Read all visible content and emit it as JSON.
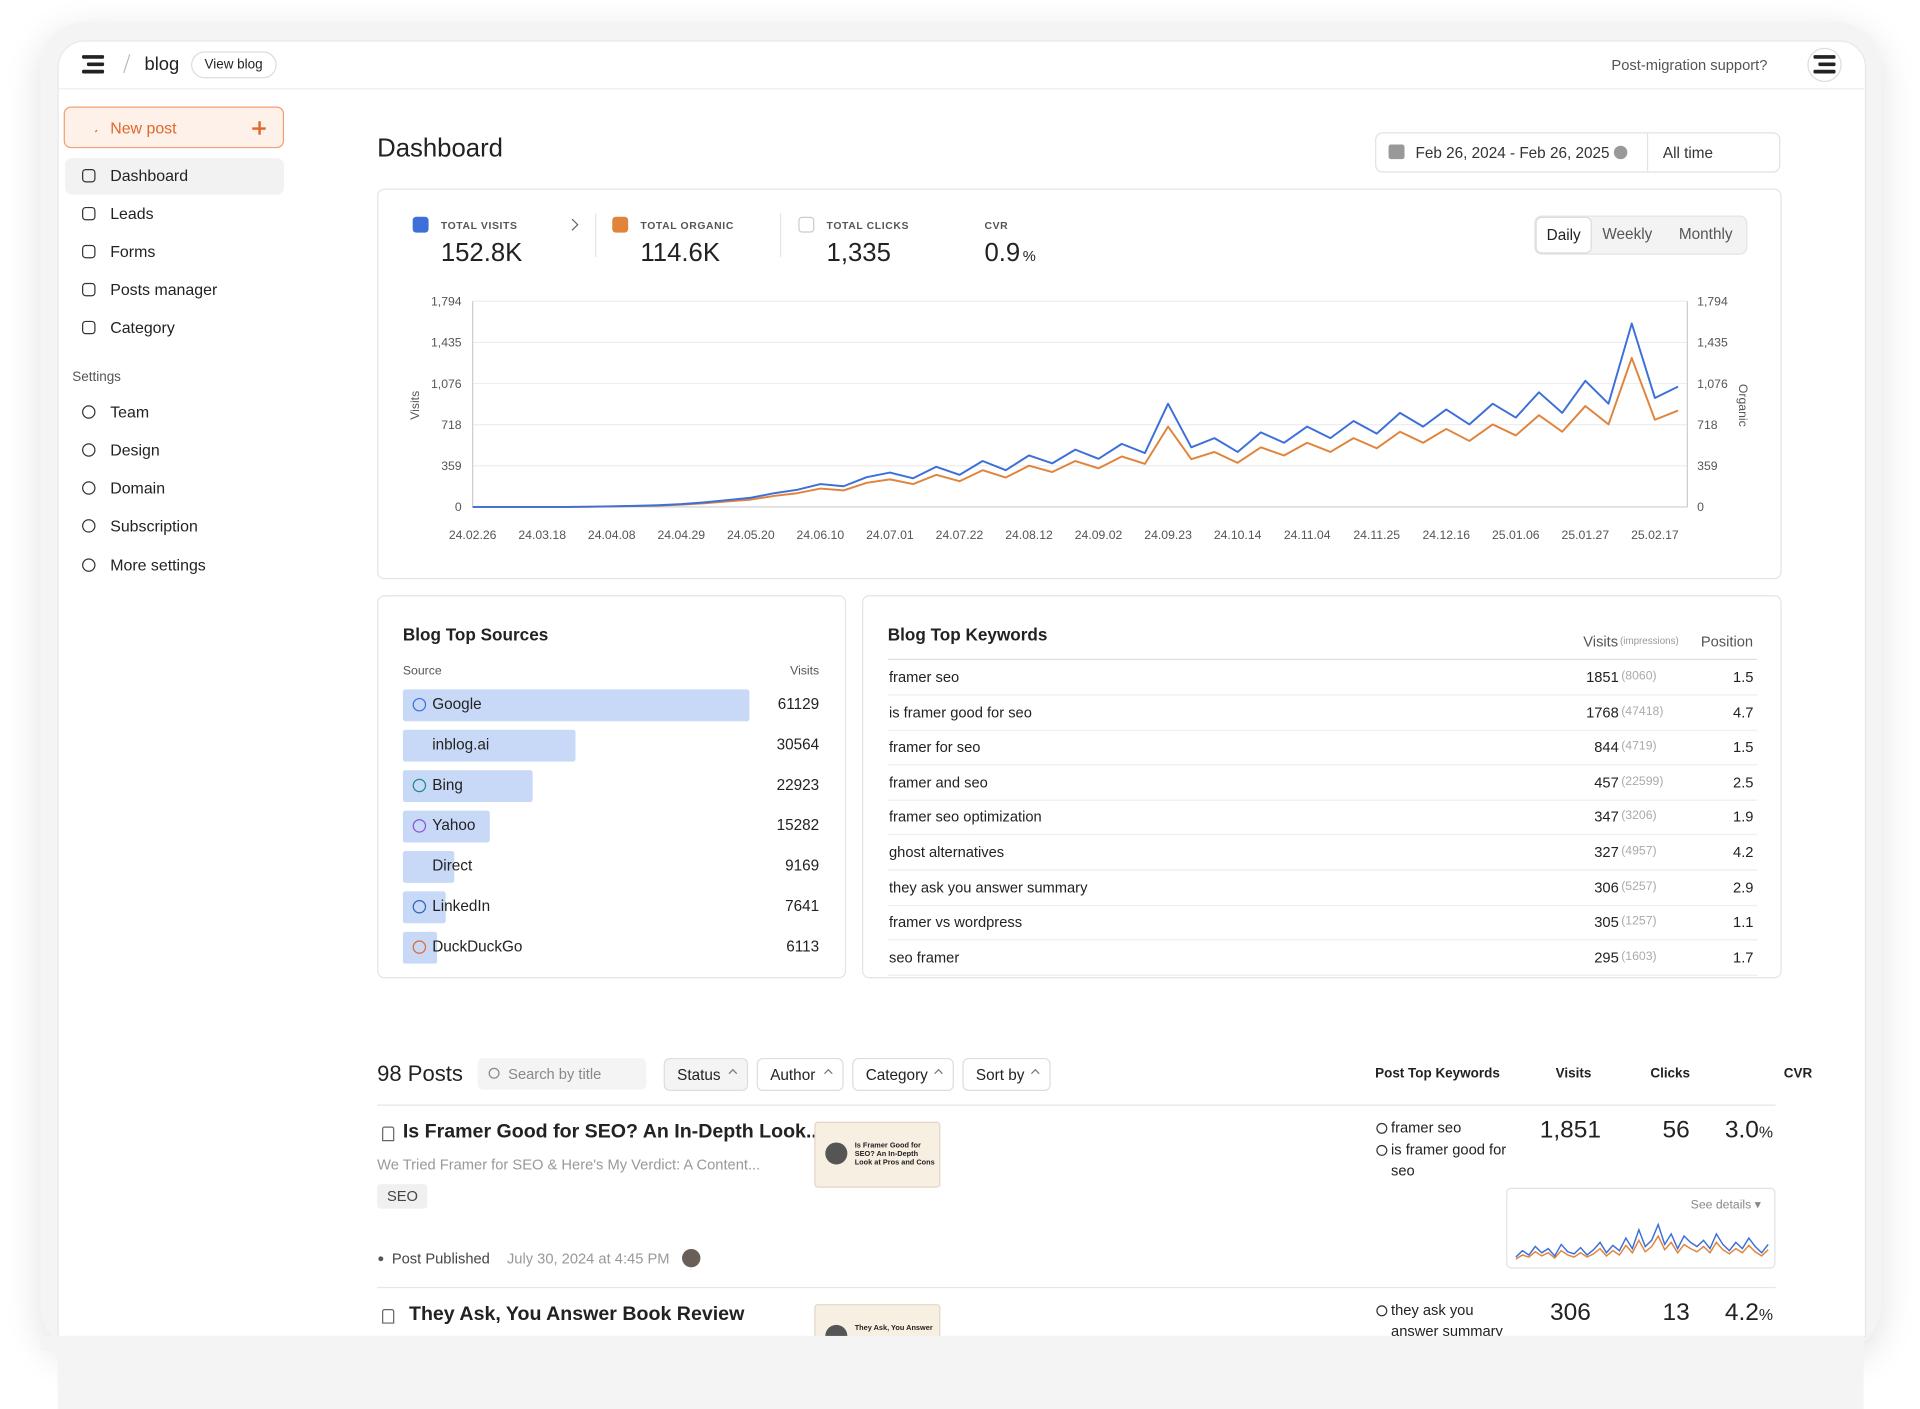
{
  "header": {
    "brand": "blog",
    "view_blog": "View blog",
    "support": "Post-migration support?"
  },
  "sidebar": {
    "new_post": "New post",
    "nav": [
      "Dashboard",
      "Leads",
      "Forms",
      "Posts manager",
      "Category"
    ],
    "active": 0,
    "settings_title": "Settings",
    "settings": [
      "Team",
      "Design",
      "Domain",
      "Subscription",
      "More settings"
    ]
  },
  "dashboard": {
    "title": "Dashboard",
    "date_range": "Feb 26, 2024 - Feb 26, 2025",
    "period": "All time",
    "kpis": [
      {
        "label": "TOTAL VISITS",
        "value": "152.8K",
        "checked": true,
        "color": "#3d6fd9"
      },
      {
        "label": "TOTAL ORGANIC",
        "value": "114.6K",
        "checked": true,
        "color": "#e0843c"
      },
      {
        "label": "TOTAL CLICKS",
        "value": "1,335",
        "checked": false
      },
      {
        "label": "CVR",
        "value": "0.9",
        "unit": "%"
      }
    ],
    "granularity": [
      "Daily",
      "Weekly",
      "Monthly"
    ],
    "granularity_selected": 0
  },
  "chart_data": {
    "type": "line",
    "y_label": "Visits",
    "y2_label": "Organic",
    "categories": [
      "24.02.26",
      null,
      null,
      "24.03.18",
      null,
      null,
      "24.04.08",
      null,
      null,
      "24.04.29",
      null,
      null,
      "24.05.20",
      null,
      null,
      "24.06.10",
      null,
      null,
      "24.07.01",
      null,
      null,
      "24.07.22",
      null,
      null,
      "24.08.12",
      null,
      null,
      "24.09.02",
      null,
      null,
      "24.09.23",
      null,
      null,
      "24.10.14",
      null,
      null,
      "24.11.04",
      null,
      null,
      "24.11.25",
      null,
      null,
      "24.12.16",
      null,
      null,
      "25.01.06",
      null,
      null,
      "25.01.27",
      null,
      null,
      "25.02.17",
      null
    ],
    "series": [
      {
        "color": "#3d6fd9",
        "values": [
          0,
          0,
          0,
          0,
          0,
          2,
          5,
          10,
          15,
          25,
          40,
          60,
          80,
          120,
          150,
          200,
          180,
          260,
          300,
          250,
          350,
          280,
          400,
          320,
          450,
          380,
          500,
          420,
          550,
          470,
          900,
          520,
          600,
          480,
          650,
          560,
          700,
          600,
          750,
          640,
          820,
          700,
          850,
          720,
          900,
          780,
          1000,
          820,
          1100,
          900,
          1600,
          950,
          1050
        ]
      },
      {
        "color": "#e0843c",
        "axis": "y2",
        "values": [
          0,
          0,
          0,
          0,
          0,
          1,
          4,
          8,
          12,
          20,
          32,
          48,
          64,
          96,
          120,
          160,
          144,
          210,
          240,
          200,
          280,
          224,
          320,
          256,
          360,
          304,
          400,
          336,
          440,
          376,
          700,
          416,
          480,
          384,
          520,
          448,
          560,
          480,
          600,
          512,
          656,
          560,
          680,
          576,
          720,
          624,
          800,
          656,
          880,
          720,
          1300,
          760,
          840
        ]
      }
    ],
    "ylim": [
      0,
      1794
    ],
    "yticks": [
      0,
      359,
      718,
      {
        "value": 1076,
        "label": "1,076"
      },
      {
        "value": 1435,
        "label": "1,435"
      },
      {
        "value": 1794,
        "label": "1,794"
      }
    ],
    "y2lim": [
      0,
      1794
    ],
    "y2ticks": [
      0,
      359,
      718,
      {
        "value": 1076,
        "label": "1,076"
      },
      {
        "value": 1435,
        "label": "1,435"
      },
      {
        "value": 1794,
        "label": "1,794"
      }
    ],
    "grid": true
  },
  "sources": {
    "title": "Blog Top Sources",
    "columns": [
      "Source",
      "Visits"
    ],
    "bar_color": "#c8d9f7",
    "rows": [
      {
        "name": "Google",
        "visits": 61129
      },
      {
        "name": "inblog.ai",
        "visits": 30564
      },
      {
        "name": "Bing",
        "visits": 22923
      },
      {
        "name": "Yahoo",
        "visits": 15282
      },
      {
        "name": "Direct",
        "visits": 9169
      },
      {
        "name": "LinkedIn",
        "visits": 7641
      },
      {
        "name": "DuckDuckGo",
        "visits": 6113
      }
    ]
  },
  "keywords": {
    "title": "Blog Top Keywords",
    "columns": [
      "Visits",
      "(impressions)",
      "Position"
    ],
    "rows": [
      {
        "keyword": "framer seo",
        "visits": 1851,
        "impressions": "(8060)",
        "position": 1.5
      },
      {
        "keyword": "is framer good for seo",
        "visits": 1768,
        "impressions": "(47418)",
        "position": 4.7
      },
      {
        "keyword": "framer for seo",
        "visits": 844,
        "impressions": "(4719)",
        "position": 1.5
      },
      {
        "keyword": "framer and seo",
        "visits": 457,
        "impressions": "(22599)",
        "position": 2.5
      },
      {
        "keyword": "framer seo optimization",
        "visits": 347,
        "impressions": "(3206)",
        "position": 1.9
      },
      {
        "keyword": "ghost alternatives",
        "visits": 327,
        "impressions": "(4957)",
        "position": 4.2
      },
      {
        "keyword": "they ask you answer summary",
        "visits": 306,
        "impressions": "(5257)",
        "position": 2.9
      },
      {
        "keyword": "framer vs wordpress",
        "visits": 305,
        "impressions": "(1257)",
        "position": 1.1
      },
      {
        "keyword": "seo framer",
        "visits": 295,
        "impressions": "(1603)",
        "position": 1.7
      }
    ]
  },
  "posts": {
    "count_label": "98 Posts",
    "search_placeholder": "Search by title",
    "filters": [
      "Status",
      "Author",
      "Category",
      "Sort by"
    ],
    "columns": [
      "Post Top Keywords",
      "Visits",
      "Clicks",
      "CVR"
    ],
    "items": [
      {
        "title": "Is Framer Good for SEO? An In-Depth Look...",
        "excerpt": "We Tried Framer for SEO & Here's My Verdict: A Content...",
        "tag": "SEO",
        "status": "Post Published",
        "date": "July 30, 2024 at 4:45 PM",
        "thumbnail": "Is Framer Good for SEO? An In-Depth Look at Pros and Cons",
        "keywords": [
          "framer seo",
          "is framer good for seo"
        ],
        "visits": "1,851",
        "clicks": "56",
        "cvr": "3.0",
        "cvr_unit": "%",
        "see_details": "See details ▾",
        "sparkline": [
          [
            4,
            10,
            6,
            14,
            8,
            12,
            5,
            16,
            9,
            7,
            13,
            6,
            11,
            18,
            8,
            15,
            10,
            22,
            12,
            30,
            14,
            20,
            35,
            16,
            26,
            12,
            24,
            18,
            14,
            20,
            12,
            26,
            16,
            10,
            18,
            12,
            22,
            14,
            8,
            16
          ],
          [
            2,
            6,
            4,
            9,
            5,
            8,
            3,
            10,
            6,
            4,
            8,
            4,
            7,
            12,
            5,
            10,
            6,
            15,
            8,
            20,
            9,
            14,
            24,
            11,
            18,
            8,
            16,
            12,
            9,
            14,
            8,
            18,
            11,
            7,
            12,
            8,
            15,
            9,
            5,
            11
          ]
        ]
      },
      {
        "title": "They Ask, You Answer Book Review",
        "thumbnail": "They Ask, You Answer",
        "keywords": [
          "they ask you answer summary"
        ],
        "visits": "306",
        "clicks": "13",
        "cvr": "4.2",
        "cvr_unit": "%"
      }
    ]
  }
}
